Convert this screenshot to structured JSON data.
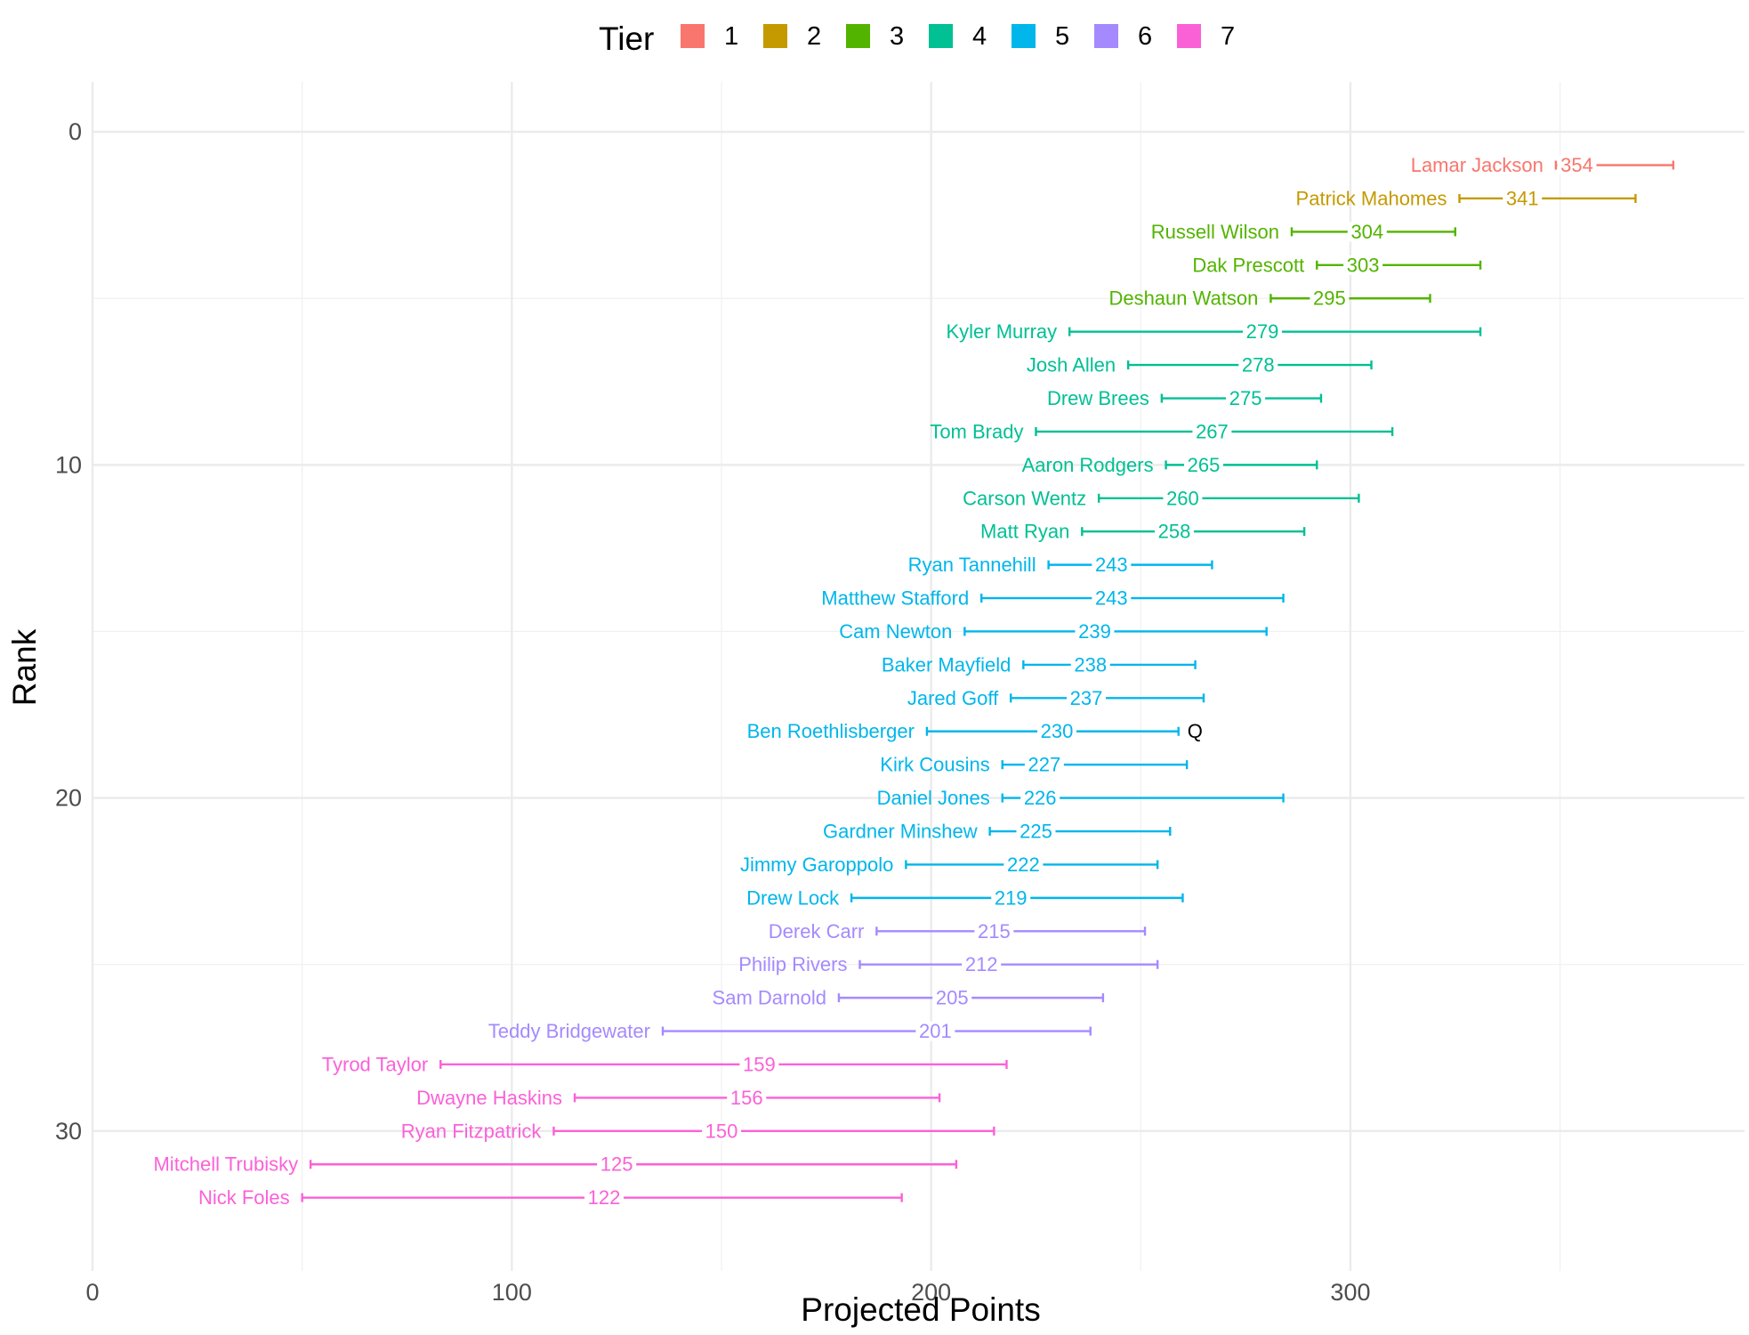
{
  "chart_data": {
    "type": "errorbar",
    "title": "",
    "xlabel": "Projected Points",
    "ylabel": "Rank",
    "xlim": [
      0,
      394
    ],
    "ylim": [
      -1.5,
      34.2
    ],
    "x_ticks": [
      0,
      100,
      200,
      300
    ],
    "y_ticks": [
      0,
      10,
      20,
      30
    ],
    "y_reversed": true,
    "grid": true,
    "legend": {
      "title": "Tier",
      "position": "top",
      "entries": [
        {
          "label": "1",
          "color": "#F8766D"
        },
        {
          "label": "2",
          "color": "#C49A00"
        },
        {
          "label": "3",
          "color": "#53B400"
        },
        {
          "label": "4",
          "color": "#00C094"
        },
        {
          "label": "5",
          "color": "#00B6EB"
        },
        {
          "label": "6",
          "color": "#A58AFF"
        },
        {
          "label": "7",
          "color": "#FB61D7"
        }
      ]
    },
    "players": [
      {
        "name": "Lamar Jackson",
        "rank": 1,
        "points": 354,
        "low": 349,
        "high": 377,
        "tier": 1
      },
      {
        "name": "Patrick Mahomes",
        "rank": 2,
        "points": 341,
        "low": 326,
        "high": 368,
        "tier": 2
      },
      {
        "name": "Russell Wilson",
        "rank": 3,
        "points": 304,
        "low": 286,
        "high": 325,
        "tier": 3
      },
      {
        "name": "Dak Prescott",
        "rank": 4,
        "points": 303,
        "low": 292,
        "high": 331,
        "tier": 3
      },
      {
        "name": "Deshaun Watson",
        "rank": 5,
        "points": 295,
        "low": 281,
        "high": 319,
        "tier": 3
      },
      {
        "name": "Kyler Murray",
        "rank": 6,
        "points": 279,
        "low": 233,
        "high": 331,
        "tier": 4
      },
      {
        "name": "Josh Allen",
        "rank": 7,
        "points": 278,
        "low": 247,
        "high": 305,
        "tier": 4
      },
      {
        "name": "Drew Brees",
        "rank": 8,
        "points": 275,
        "low": 255,
        "high": 293,
        "tier": 4
      },
      {
        "name": "Tom Brady",
        "rank": 9,
        "points": 267,
        "low": 225,
        "high": 310,
        "tier": 4
      },
      {
        "name": "Aaron Rodgers",
        "rank": 10,
        "points": 265,
        "low": 256,
        "high": 292,
        "tier": 4
      },
      {
        "name": "Carson Wentz",
        "rank": 11,
        "points": 260,
        "low": 240,
        "high": 302,
        "tier": 4
      },
      {
        "name": "Matt Ryan",
        "rank": 12,
        "points": 258,
        "low": 236,
        "high": 289,
        "tier": 4
      },
      {
        "name": "Ryan Tannehill",
        "rank": 13,
        "points": 243,
        "low": 228,
        "high": 267,
        "tier": 5
      },
      {
        "name": "Matthew Stafford",
        "rank": 14,
        "points": 243,
        "low": 212,
        "high": 284,
        "tier": 5
      },
      {
        "name": "Cam Newton",
        "rank": 15,
        "points": 239,
        "low": 208,
        "high": 280,
        "tier": 5
      },
      {
        "name": "Baker Mayfield",
        "rank": 16,
        "points": 238,
        "low": 222,
        "high": 263,
        "tier": 5
      },
      {
        "name": "Jared Goff",
        "rank": 17,
        "points": 237,
        "low": 219,
        "high": 265,
        "tier": 5
      },
      {
        "name": "Ben Roethlisberger",
        "rank": 18,
        "points": 230,
        "low": 199,
        "high": 259,
        "tier": 5,
        "note": "Q"
      },
      {
        "name": "Kirk Cousins",
        "rank": 19,
        "points": 227,
        "low": 217,
        "high": 261,
        "tier": 5
      },
      {
        "name": "Daniel Jones",
        "rank": 20,
        "points": 226,
        "low": 217,
        "high": 284,
        "tier": 5
      },
      {
        "name": "Gardner Minshew",
        "rank": 21,
        "points": 225,
        "low": 214,
        "high": 257,
        "tier": 5
      },
      {
        "name": "Jimmy Garoppolo",
        "rank": 22,
        "points": 222,
        "low": 194,
        "high": 254,
        "tier": 5
      },
      {
        "name": "Drew Lock",
        "rank": 23,
        "points": 219,
        "low": 181,
        "high": 260,
        "tier": 5
      },
      {
        "name": "Derek Carr",
        "rank": 24,
        "points": 215,
        "low": 187,
        "high": 251,
        "tier": 6
      },
      {
        "name": "Philip Rivers",
        "rank": 25,
        "points": 212,
        "low": 183,
        "high": 254,
        "tier": 6
      },
      {
        "name": "Sam Darnold",
        "rank": 26,
        "points": 205,
        "low": 178,
        "high": 241,
        "tier": 6
      },
      {
        "name": "Teddy Bridgewater",
        "rank": 27,
        "points": 201,
        "low": 136,
        "high": 238,
        "tier": 6
      },
      {
        "name": "Tyrod Taylor",
        "rank": 28,
        "points": 159,
        "low": 83,
        "high": 218,
        "tier": 7
      },
      {
        "name": "Dwayne Haskins",
        "rank": 29,
        "points": 156,
        "low": 115,
        "high": 202,
        "tier": 7
      },
      {
        "name": "Ryan Fitzpatrick",
        "rank": 30,
        "points": 150,
        "low": 110,
        "high": 215,
        "tier": 7
      },
      {
        "name": "Mitchell Trubisky",
        "rank": 31,
        "points": 125,
        "low": 52,
        "high": 206,
        "tier": 7
      },
      {
        "name": "Nick Foles",
        "rank": 32,
        "points": 122,
        "low": 50,
        "high": 193,
        "tier": 7
      }
    ]
  }
}
